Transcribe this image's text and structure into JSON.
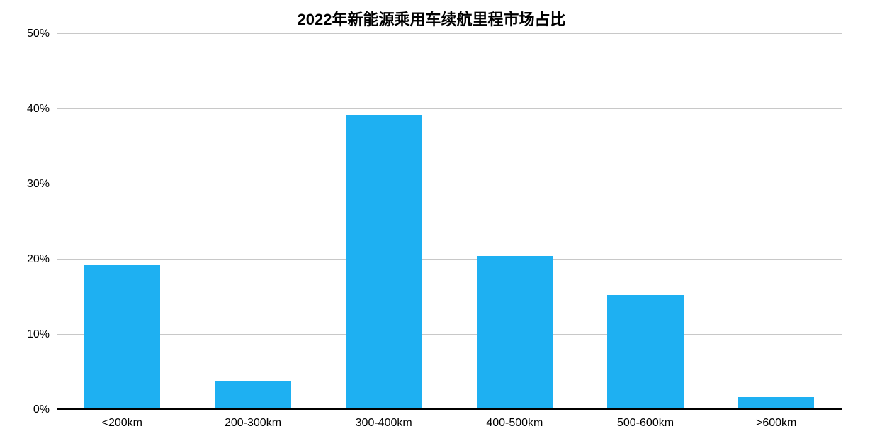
{
  "chart": {
    "type": "bar",
    "title": "2022年新能源乘用车续航里程市场占比",
    "title_fontsize": 22,
    "title_fontweight": 700,
    "categories": [
      "<200km",
      "200-300km",
      "300-400km",
      "400-500km",
      "500-600km",
      ">600km"
    ],
    "values": [
      19.2,
      3.8,
      39.2,
      20.5,
      15.3,
      1.7
    ],
    "bar_color": "#1eb0f2",
    "background_color": "#ffffff",
    "grid_color": "#c8c8c8",
    "baseline_color": "#000000",
    "ylim": [
      0,
      50
    ],
    "ytick_step": 10,
    "ytick_labels": [
      "0%",
      "10%",
      "20%",
      "30%",
      "40%",
      "50%"
    ],
    "y_label_fontsize": 16,
    "x_label_fontsize": 16,
    "bar_width": 0.58
  }
}
